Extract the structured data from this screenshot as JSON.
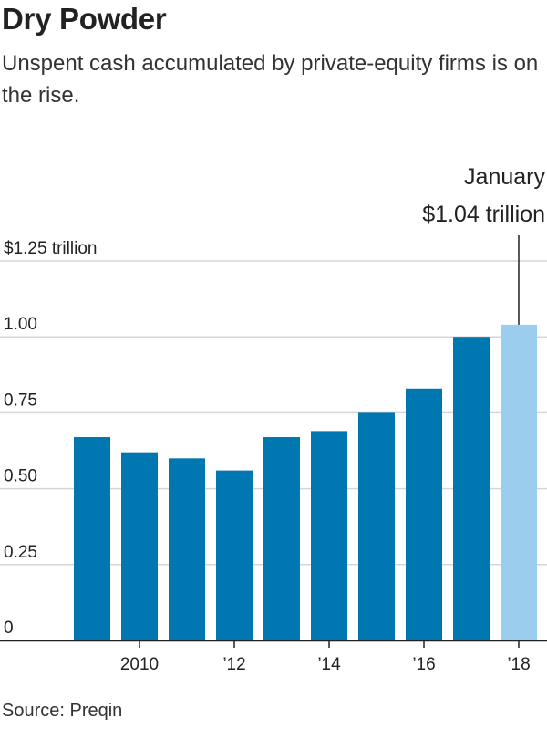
{
  "chart_data": {
    "type": "bar",
    "title": "Dry Powder",
    "subtitle": "Unspent cash accumulated by private-equity firms is on the rise.",
    "source": "Source: Preqin",
    "x": [
      2009,
      2010,
      2011,
      2012,
      2013,
      2014,
      2015,
      2016,
      2017,
      2018
    ],
    "values": [
      0.67,
      0.62,
      0.6,
      0.56,
      0.67,
      0.69,
      0.75,
      0.83,
      1.0,
      1.04
    ],
    "highlight_index": 9,
    "ylim": [
      0,
      1.25
    ],
    "yticks": [
      {
        "value": 0,
        "label": "0"
      },
      {
        "value": 0.25,
        "label": "0.25"
      },
      {
        "value": 0.5,
        "label": "0.50"
      },
      {
        "value": 0.75,
        "label": "0.75"
      },
      {
        "value": 1.0,
        "label": "1.00"
      },
      {
        "value": 1.25,
        "label": "$1.25 trillion"
      }
    ],
    "xticks": [
      {
        "value": 2010,
        "label": "2010"
      },
      {
        "value": 2012,
        "label": "’12"
      },
      {
        "value": 2014,
        "label": "’14"
      },
      {
        "value": 2016,
        "label": "’16"
      },
      {
        "value": 2018,
        "label": "’18"
      }
    ],
    "annotation": {
      "line1": "January",
      "line2": "$1.04 trillion",
      "index": 9
    },
    "colors": {
      "bar": "#0077b0",
      "highlight": "#9bcdee",
      "grid": "#d6d6d6",
      "axis": "#222222"
    },
    "grid": true
  }
}
